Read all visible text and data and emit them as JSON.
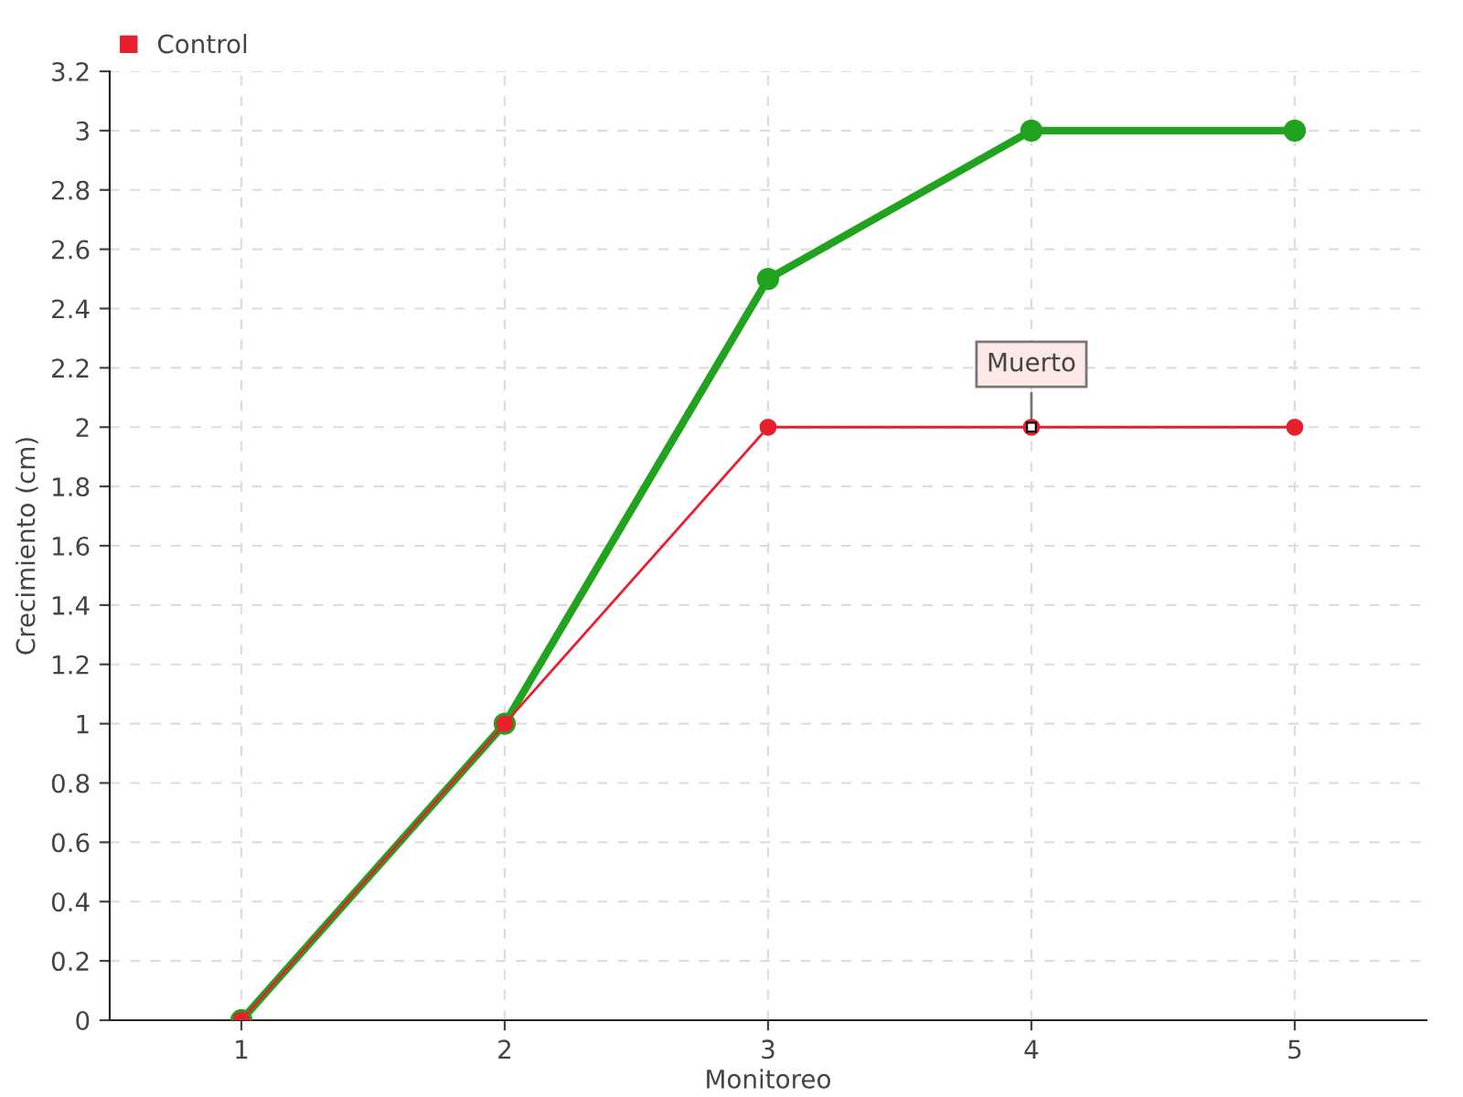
{
  "chart_data": {
    "type": "line",
    "xlabel": "Monitoreo",
    "ylabel": "Crecimiento (cm)",
    "categories": [
      "1",
      "2",
      "3",
      "4",
      "5"
    ],
    "series": [
      {
        "color": "#22a31f",
        "values": [
          0,
          1,
          2.5,
          3,
          3
        ]
      },
      {
        "name": "Control",
        "color": "#e8202e",
        "values": [
          0,
          1,
          2,
          2,
          2
        ]
      }
    ],
    "ylim": [
      0,
      3.2
    ],
    "yticks": [
      0,
      0.2,
      0.4,
      0.6,
      0.8,
      1,
      1.2,
      1.4,
      1.6,
      1.8,
      2,
      2.2,
      2.4,
      2.6,
      2.8,
      3,
      3.2
    ],
    "annotations": [
      {
        "text": "Muerto",
        "x": "4",
        "y": 2
      }
    ],
    "grid": true,
    "legend": "top left",
    "marker": "circle"
  }
}
